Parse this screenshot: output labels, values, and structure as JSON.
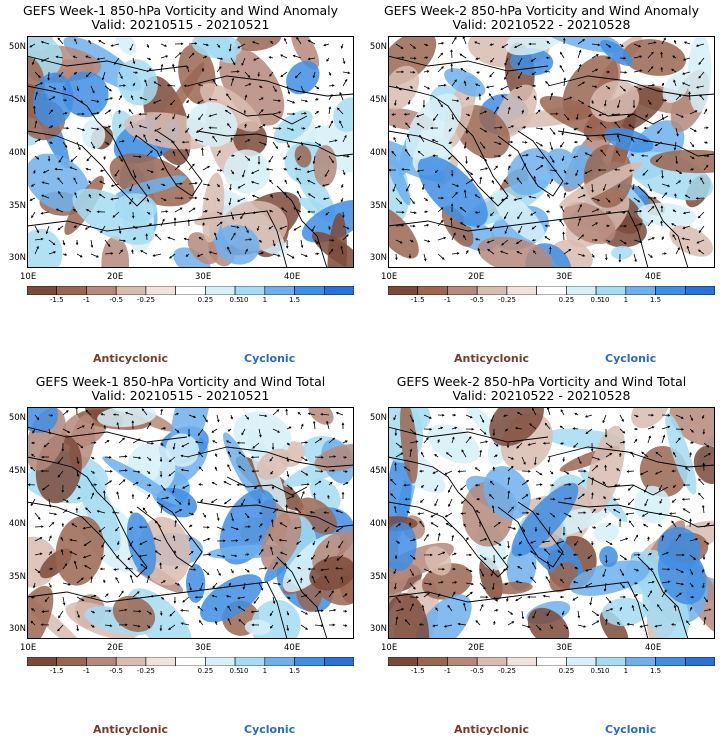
{
  "panels": [
    {
      "line1": "GEFS Week-1  850-hPa Vorticity and Wind Anomaly",
      "line2": "Valid: 20210515 - 20210521"
    },
    {
      "line1": "GEFS Week-2  850-hPa Vorticity and Wind Anomaly",
      "line2": "Valid: 20210522 - 20210528"
    },
    {
      "line1": "GEFS Week-1  850-hPa Vorticity and Wind Total",
      "line2": "Valid: 20210515 - 20210521"
    },
    {
      "line1": "GEFS Week-2  850-hPa Vorticity and Wind Total",
      "line2": "Valid: 20210522 - 20210528"
    }
  ],
  "lat_labels": [
    "50N",
    "45N",
    "40N",
    "35N",
    "30N"
  ],
  "lon_labels": [
    "10E",
    "20E",
    "30E",
    "40E"
  ],
  "colorbar": {
    "labels": [
      "-1.5",
      "-1",
      "-0.5",
      "-0.25",
      "0.25",
      "0.5",
      "1",
      "1.5"
    ],
    "scale_label": "10",
    "colors": [
      "#7b4a3a",
      "#9a6652",
      "#b5887a",
      "#d9bcb0",
      "#f0e2dc",
      "#ffffff",
      "#d6f0f8",
      "#a5dcf2",
      "#6fb0ec",
      "#3f8ee4",
      "#2b70d8"
    ]
  },
  "legend": {
    "anticyclonic": "Anticyclonic",
    "cyclonic": "Cyclonic"
  }
}
